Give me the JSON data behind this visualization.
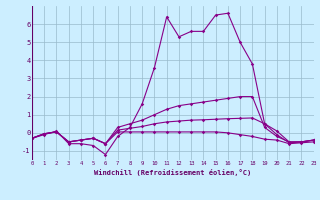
{
  "x": [
    0,
    1,
    2,
    3,
    4,
    5,
    6,
    7,
    8,
    9,
    10,
    11,
    12,
    13,
    14,
    15,
    16,
    17,
    18,
    19,
    20,
    21,
    22,
    23
  ],
  "line1": [
    -0.3,
    -0.1,
    0.1,
    -0.6,
    -0.6,
    -0.7,
    -1.2,
    -0.2,
    0.3,
    1.6,
    3.6,
    6.4,
    5.3,
    5.6,
    5.6,
    6.5,
    6.6,
    5.0,
    3.8,
    0.5,
    0.1,
    -0.5,
    -0.5,
    -0.4
  ],
  "line2": [
    -0.3,
    -0.05,
    0.05,
    -0.5,
    -0.4,
    -0.3,
    -0.6,
    0.3,
    0.5,
    0.7,
    1.0,
    1.3,
    1.5,
    1.6,
    1.7,
    1.8,
    1.9,
    2.0,
    2.0,
    0.3,
    -0.2,
    -0.5,
    -0.5,
    -0.4
  ],
  "line3": [
    -0.3,
    -0.05,
    0.05,
    -0.5,
    -0.4,
    -0.3,
    -0.6,
    0.15,
    0.25,
    0.35,
    0.5,
    0.6,
    0.65,
    0.7,
    0.72,
    0.75,
    0.78,
    0.8,
    0.82,
    0.5,
    -0.1,
    -0.55,
    -0.5,
    -0.4
  ],
  "line4": [
    -0.3,
    -0.05,
    0.05,
    -0.5,
    -0.4,
    -0.3,
    -0.6,
    0.05,
    0.05,
    0.05,
    0.05,
    0.05,
    0.05,
    0.05,
    0.05,
    0.05,
    0.0,
    -0.1,
    -0.2,
    -0.35,
    -0.4,
    -0.6,
    -0.55,
    -0.5
  ],
  "line_color": "#880088",
  "bg_color": "#cceeff",
  "grid_color": "#99bbcc",
  "axis_color": "#660066",
  "ylim": [
    -1.5,
    7.0
  ],
  "xlim": [
    0,
    23
  ],
  "xlabel": "Windchill (Refroidissement éolien,°C)",
  "yticks": [
    -1,
    0,
    1,
    2,
    3,
    4,
    5,
    6
  ],
  "xticks": [
    0,
    1,
    2,
    3,
    4,
    5,
    6,
    7,
    8,
    9,
    10,
    11,
    12,
    13,
    14,
    15,
    16,
    17,
    18,
    19,
    20,
    21,
    22,
    23
  ]
}
